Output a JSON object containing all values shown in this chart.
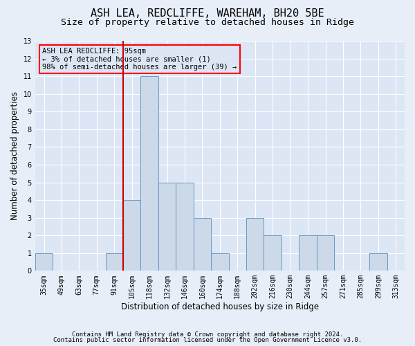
{
  "title": "ASH LEA, REDCLIFFE, WAREHAM, BH20 5BE",
  "subtitle": "Size of property relative to detached houses in Ridge",
  "xlabel": "Distribution of detached houses by size in Ridge",
  "ylabel": "Number of detached properties",
  "footnote1": "Contains HM Land Registry data © Crown copyright and database right 2024.",
  "footnote2": "Contains public sector information licensed under the Open Government Licence v3.0.",
  "annotation_title": "ASH LEA REDCLIFFE: 95sqm",
  "annotation_line1": "← 3% of detached houses are smaller (1)",
  "annotation_line2": "98% of semi-detached houses are larger (39) →",
  "bar_color": "#ccd9e8",
  "bar_edgecolor": "#5b8db8",
  "redline_color": "#cc0000",
  "categories": [
    "35sqm",
    "49sqm",
    "63sqm",
    "77sqm",
    "91sqm",
    "105sqm",
    "118sqm",
    "132sqm",
    "146sqm",
    "160sqm",
    "174sqm",
    "188sqm",
    "202sqm",
    "216sqm",
    "230sqm",
    "244sqm",
    "257sqm",
    "271sqm",
    "285sqm",
    "299sqm",
    "313sqm"
  ],
  "values": [
    1,
    0,
    0,
    0,
    1,
    4,
    11,
    5,
    5,
    3,
    1,
    0,
    3,
    2,
    0,
    2,
    2,
    0,
    0,
    1,
    0
  ],
  "n_bins": 21,
  "redline_bin": 4,
  "ylim": [
    0,
    13
  ],
  "yticks": [
    0,
    1,
    2,
    3,
    4,
    5,
    6,
    7,
    8,
    9,
    10,
    11,
    12,
    13
  ],
  "background_color": "#e8eef7",
  "plot_bg_color": "#dce6f5",
  "grid_color": "#ffffff",
  "title_fontsize": 11,
  "subtitle_fontsize": 9.5,
  "label_fontsize": 8.5,
  "tick_fontsize": 7,
  "annotation_fontsize": 7.5,
  "footnote_fontsize": 6.5
}
